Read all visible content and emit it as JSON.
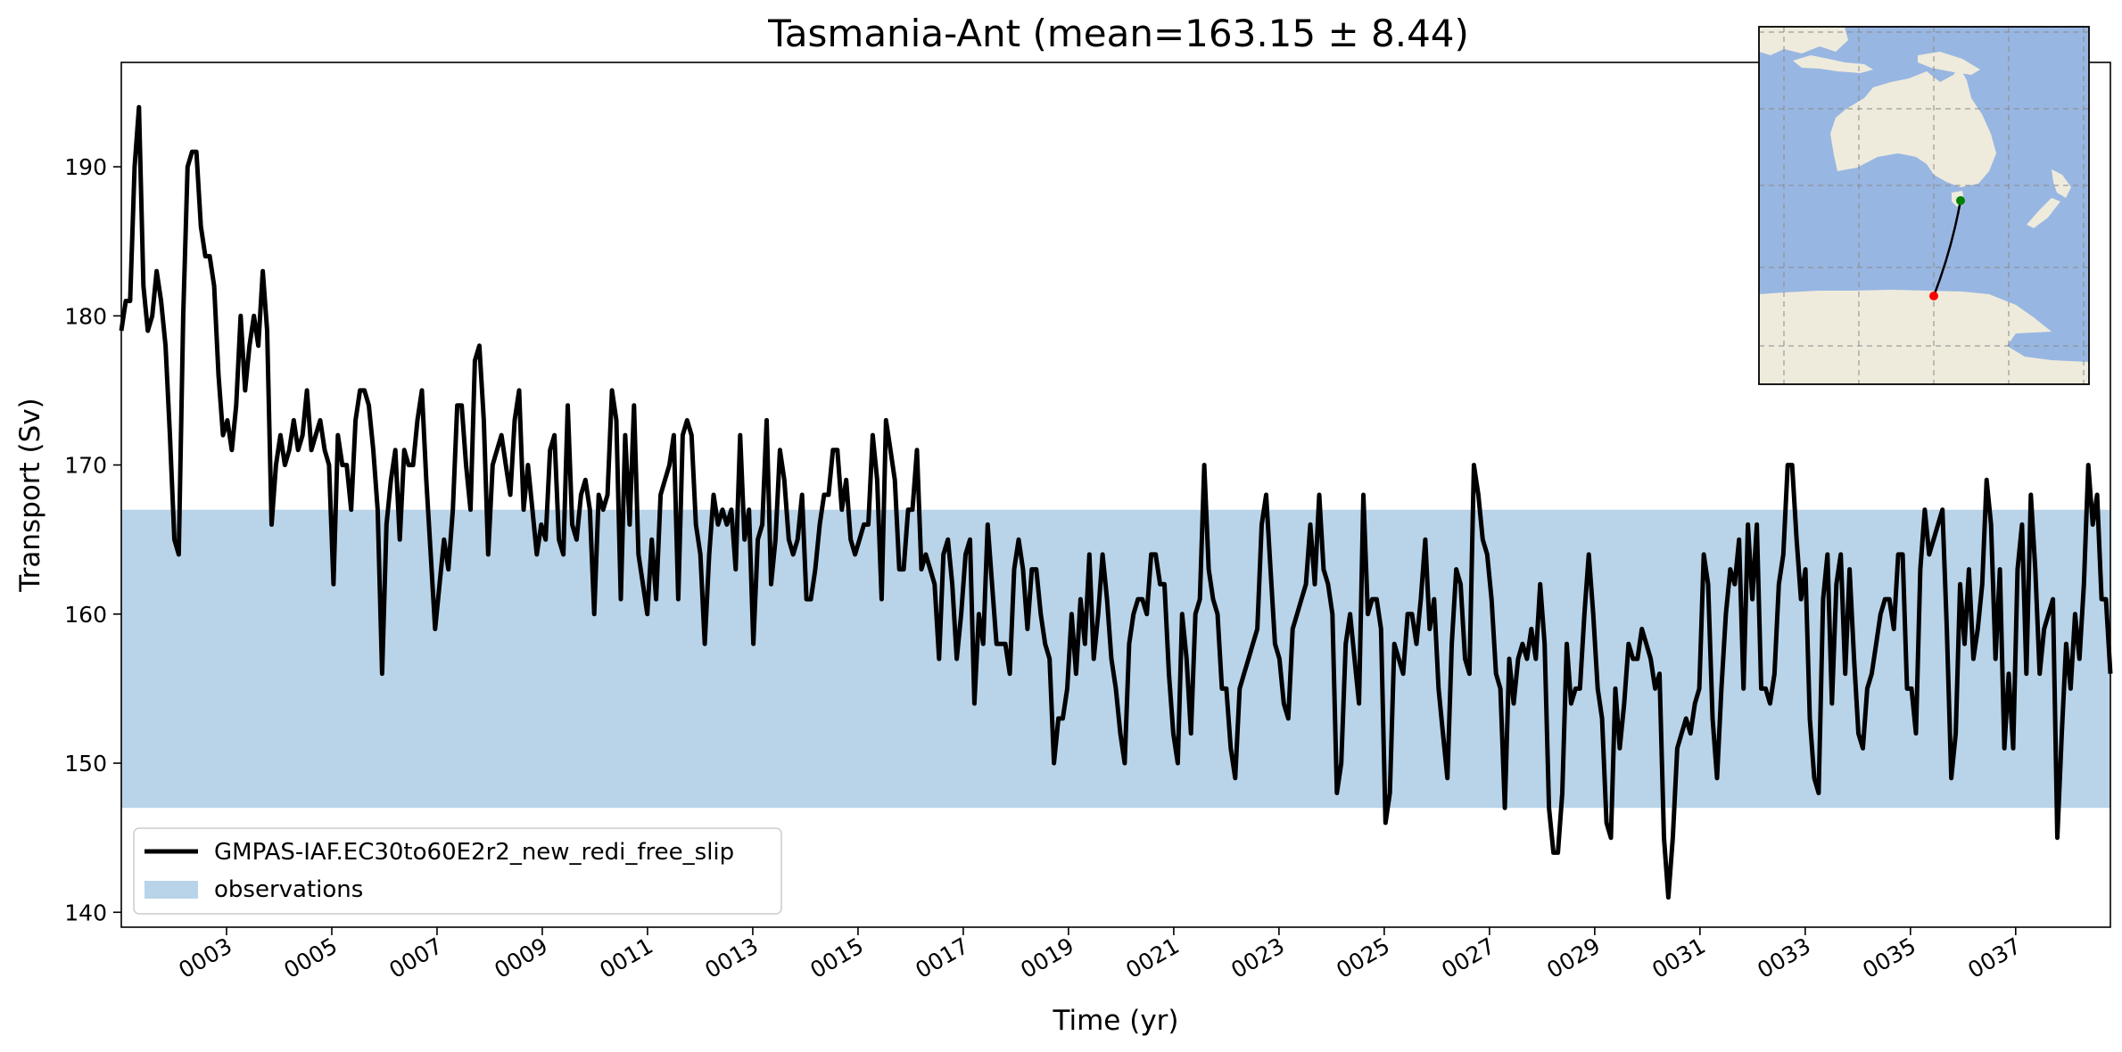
{
  "chart_data": {
    "type": "line",
    "title": "Tasmania-Ant (mean=163.15 ± 8.44)",
    "xlabel": "Time (yr)",
    "ylabel": "Transport (Sv)",
    "xlim": [
      1,
      38.8
    ],
    "ylim": [
      139,
      197
    ],
    "yticks": [
      140,
      150,
      160,
      170,
      180,
      190
    ],
    "xticks": [
      3,
      5,
      7,
      9,
      11,
      13,
      15,
      17,
      19,
      21,
      23,
      25,
      27,
      29,
      31,
      33,
      35,
      37
    ],
    "xtick_labels": [
      "0003",
      "0005",
      "0007",
      "0009",
      "0011",
      "0013",
      "0015",
      "0017",
      "0019",
      "0021",
      "0023",
      "0025",
      "0027",
      "0029",
      "0031",
      "0033",
      "0035",
      "0037"
    ],
    "grid": false,
    "legend_position": "lower-left",
    "observations_band": {
      "name": "observations",
      "y_range": [
        147,
        167
      ],
      "color": "#b9d4e9"
    },
    "series": [
      {
        "name": "GMPAS-IAF.EC30to60E2r2_new_redi_free_slip",
        "color": "#000000",
        "values": [
          179,
          181,
          181,
          190,
          194,
          182,
          179,
          180,
          183,
          181,
          178,
          172,
          165,
          164,
          180,
          190,
          191,
          191,
          186,
          184,
          184,
          182,
          176,
          172,
          173,
          171,
          174,
          180,
          175,
          178,
          180,
          178,
          183,
          179,
          166,
          170,
          172,
          170,
          171,
          173,
          171,
          172,
          175,
          171,
          172,
          173,
          171,
          170,
          162,
          172,
          170,
          170,
          167,
          173,
          175,
          175,
          174,
          171,
          167,
          156,
          166,
          169,
          171,
          165,
          171,
          170,
          170,
          173,
          175,
          169,
          164,
          159,
          162,
          165,
          163,
          167,
          174,
          174,
          170,
          167,
          177,
          178,
          173,
          164,
          170,
          171,
          172,
          170,
          168,
          173,
          175,
          167,
          170,
          167,
          164,
          166,
          165,
          171,
          172,
          165,
          164,
          174,
          166,
          165,
          168,
          169,
          167,
          160,
          168,
          167,
          168,
          175,
          173,
          161,
          172,
          166,
          174,
          164,
          162,
          160,
          165,
          161,
          168,
          169,
          170,
          172,
          161,
          172,
          173,
          172,
          166,
          164,
          158,
          164,
          168,
          166,
          167,
          166,
          167,
          163,
          172,
          165,
          167,
          158,
          165,
          166,
          173,
          162,
          165,
          171,
          169,
          165,
          164,
          165,
          168,
          161,
          161,
          163,
          166,
          168,
          168,
          171,
          171,
          167,
          169,
          165,
          164,
          165,
          166,
          166,
          172,
          169,
          161,
          173,
          171,
          169,
          163,
          163,
          167,
          167,
          171,
          163,
          164,
          163,
          162,
          157,
          164,
          165,
          162,
          157,
          160,
          164,
          165,
          154,
          160,
          158,
          166,
          162,
          158,
          158,
          158,
          156,
          163,
          165,
          163,
          159,
          163,
          163,
          160,
          158,
          157,
          150,
          153,
          153,
          155,
          160,
          156,
          161,
          158,
          164,
          157,
          160,
          164,
          161,
          157,
          155,
          152,
          150,
          158,
          160,
          161,
          161,
          160,
          164,
          164,
          162,
          162,
          156,
          152,
          150,
          160,
          157,
          152,
          160,
          161,
          170,
          163,
          161,
          160,
          155,
          155,
          151,
          149,
          155,
          156,
          157,
          158,
          159,
          166,
          168,
          163,
          158,
          157,
          154,
          153,
          159,
          160,
          161,
          162,
          166,
          162,
          168,
          163,
          162,
          160,
          148,
          150,
          158,
          160,
          157,
          154,
          168,
          160,
          161,
          161,
          159,
          146,
          148,
          158,
          157,
          156,
          160,
          160,
          158,
          161,
          165,
          159,
          161,
          155,
          152,
          149,
          158,
          163,
          162,
          157,
          156,
          170,
          168,
          165,
          164,
          161,
          156,
          155,
          147,
          157,
          154,
          157,
          158,
          157,
          159,
          157,
          162,
          158,
          147,
          144,
          144,
          148,
          158,
          154,
          155,
          155,
          160,
          164,
          160,
          155,
          153,
          146,
          145,
          155,
          151,
          154,
          158,
          157,
          157,
          159,
          158,
          157,
          155,
          156,
          145,
          141,
          145,
          151,
          152,
          153,
          152,
          154,
          155,
          164,
          162,
          153,
          149,
          155,
          160,
          163,
          162,
          165,
          155,
          166,
          161,
          166,
          155,
          155,
          154,
          156,
          162,
          164,
          170,
          170,
          165,
          161,
          163,
          153,
          149,
          148,
          161,
          164,
          154,
          162,
          164,
          156,
          163,
          157,
          152,
          151,
          155,
          156,
          158,
          160,
          161,
          161,
          159,
          164,
          164,
          155,
          155,
          152,
          163,
          167,
          164,
          165,
          166,
          167,
          159,
          149,
          152,
          162,
          158,
          163,
          157,
          159,
          162,
          169,
          166,
          157,
          163,
          151,
          156,
          151,
          163,
          166,
          156,
          168,
          163,
          156,
          159,
          160,
          161,
          145,
          152,
          158,
          155,
          160,
          157,
          162,
          170,
          166,
          168,
          161,
          161,
          156
        ]
      }
    ],
    "inset_map": {
      "land_color": "#efebdc",
      "ocean_color": "#98b6e2",
      "track_start_color": "#008000",
      "track_end_color": "#ff0000"
    }
  }
}
